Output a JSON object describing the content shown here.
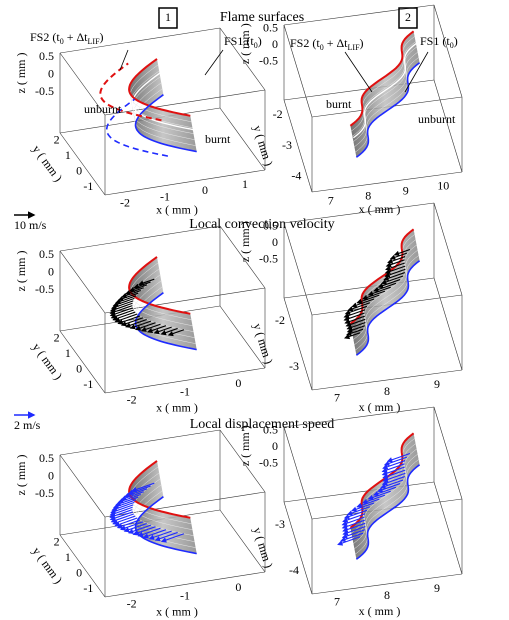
{
  "panel_numbers": [
    "1",
    "2"
  ],
  "rows": [
    {
      "title": "Flame surfaces",
      "panels": [
        {
          "x_ticks": [
            "-2",
            "-1",
            "0",
            "1"
          ],
          "y_ticks": [
            "2",
            "1",
            "0",
            "-1"
          ],
          "z_ticks": [
            "0.5",
            "0",
            "-0.5"
          ],
          "x_label": "x ( mm )",
          "y_label": "y ( mm )",
          "z_label": "z ( mm )"
        },
        {
          "x_ticks": [
            "7",
            "8",
            "9",
            "10"
          ],
          "y_ticks": [
            "-2",
            "-3",
            "-4"
          ],
          "z_ticks": [
            "0.5",
            "0",
            "-0.5"
          ],
          "x_label": "x ( mm )",
          "y_label": "y ( mm )",
          "z_label": "z ( mm )"
        }
      ]
    },
    {
      "title": "Local convection velocity",
      "scale_label": "10 m/s",
      "panels": [
        {
          "x_ticks": [
            "-2",
            "-1",
            "0"
          ],
          "y_ticks": [
            "2",
            "1",
            "0",
            "-1"
          ],
          "z_ticks": [
            "0.5",
            "0",
            "-0.5"
          ],
          "x_label": "x ( mm )",
          "y_label": "y ( mm )",
          "z_label": "z ( mm )"
        },
        {
          "x_ticks": [
            "7",
            "8",
            "9"
          ],
          "y_ticks": [
            "-2",
            "-3"
          ],
          "z_ticks": [
            "0.5",
            "0",
            "-0.5"
          ],
          "x_label": "x ( mm )",
          "y_label": "y ( mm )",
          "z_label": "z ( mm )"
        }
      ]
    },
    {
      "title": "Local displacement speed",
      "scale_label": "2 m/s",
      "panels": [
        {
          "x_ticks": [
            "-2",
            "-1",
            "0"
          ],
          "y_ticks": [
            "2",
            "1",
            "0",
            "-1"
          ],
          "z_ticks": [
            "0.5",
            "0",
            "-0.5"
          ],
          "x_label": "x ( mm )",
          "y_label": "y ( mm )",
          "z_label": "z ( mm )"
        },
        {
          "x_ticks": [
            "7",
            "8",
            "9"
          ],
          "y_ticks": [
            "-3",
            "-4"
          ],
          "z_ticks": [
            "0.5",
            "0",
            "-0.5"
          ],
          "x_label": "x ( mm )",
          "y_label": "y ( mm )",
          "z_label": "z ( mm )"
        }
      ]
    }
  ],
  "annotations": {
    "fs2": {
      "main": "FS2 (t",
      "sub1": "0",
      "mid": " + Δt",
      "sub2": "LIF",
      "end": ")"
    },
    "fs1": {
      "main": "FS1 (t",
      "sub": "0",
      "end": ")"
    },
    "unburnt": "unburnt",
    "burnt": "burnt"
  }
}
